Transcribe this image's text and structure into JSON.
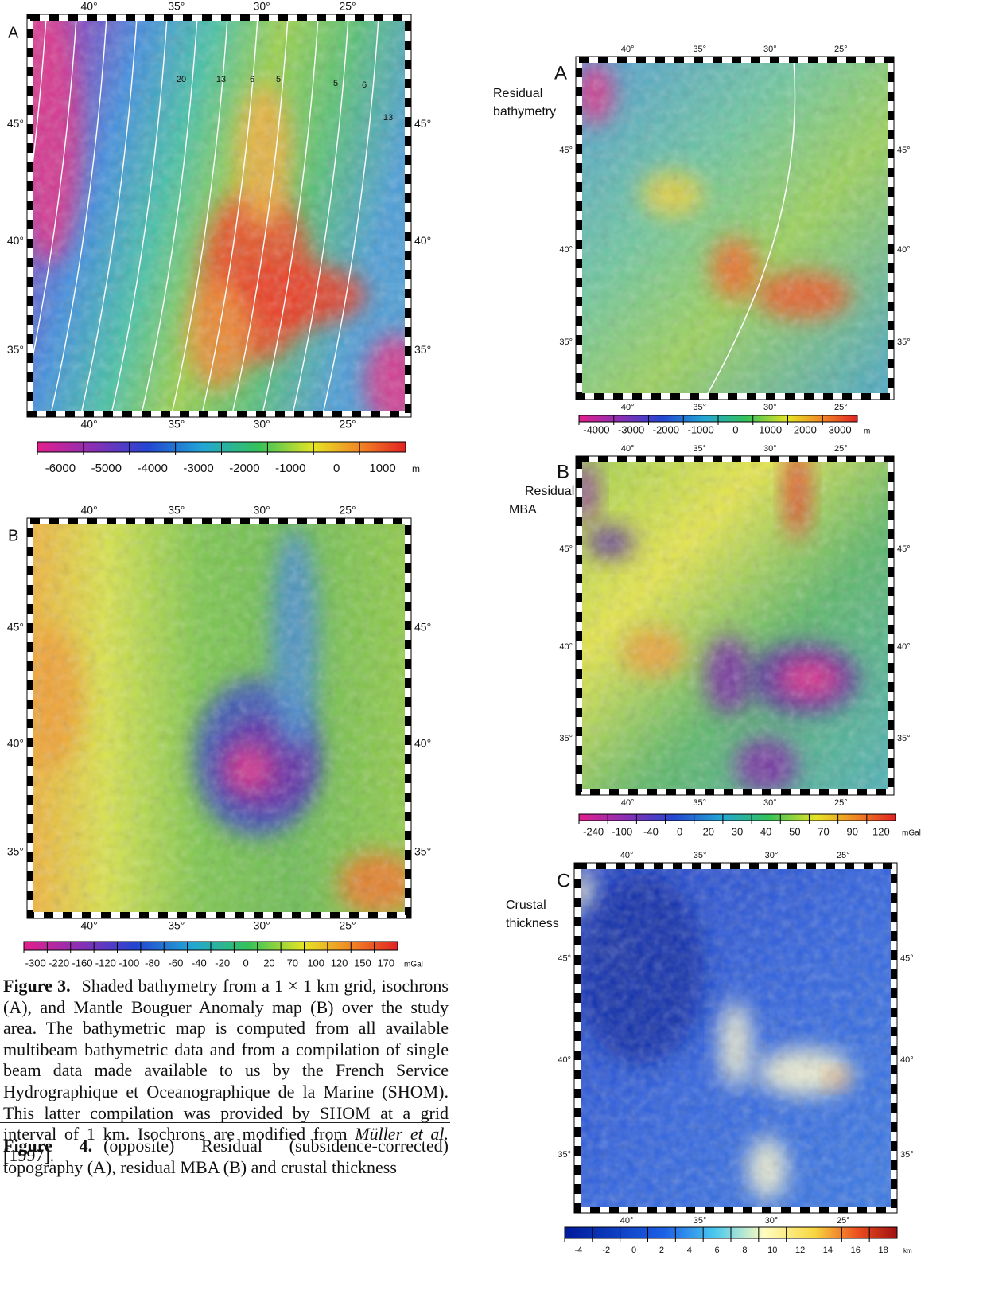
{
  "figure3": {
    "panel_a": {
      "label": "A",
      "top_lon": [
        "40°",
        "35°",
        "30°",
        "25°"
      ],
      "bottom_lon": [
        "40°",
        "35°",
        "30°",
        "25°"
      ],
      "left_lat": [
        "45°",
        "40°",
        "35°"
      ],
      "right_lat": [
        "45°",
        "40°",
        "35°"
      ],
      "isochron_labels": [
        "20",
        "13",
        "6",
        "5",
        "5",
        "6",
        "13"
      ],
      "colorbar": {
        "ticks": [
          "-6000",
          "-5000",
          "-4000",
          "-3000",
          "-2000",
          "-1000",
          "0",
          "1000"
        ],
        "unit": "m"
      }
    },
    "panel_b": {
      "label": "B",
      "top_lon": [
        "40°",
        "35°",
        "30°",
        "25°"
      ],
      "bottom_lon": [
        "40°",
        "35°",
        "30°",
        "25°"
      ],
      "left_lat": [
        "45°",
        "40°",
        "35°"
      ],
      "right_lat": [
        "45°",
        "40°",
        "35°"
      ],
      "colorbar": {
        "ticks": [
          "-300",
          "-220",
          "-160",
          "-120",
          "-100",
          "-80",
          "-60",
          "-40",
          "-20",
          "0",
          "20",
          "70",
          "100",
          "120",
          "150",
          "170"
        ],
        "unit": "mGal"
      }
    },
    "caption": {
      "label": "Figure 3.",
      "text": "Shaded bathymetry from a 1 × 1 km grid, isochrons (A), and Mantle Bouguer Anomaly map (B) over the study area. The bathymetric map is computed from all available multibeam bathymetric data and from a compilation of single beam data made available to us by the French Service Hydrographique et Oceanographique de la Marine (SHOM). This latter compilation was provided by SHOM at a grid interval of 1 km. Isochrons are modified from ",
      "citation": "Müller et al.",
      "end": " [1997]."
    }
  },
  "figure4": {
    "panel_a": {
      "label": "A",
      "title": [
        "Residual",
        "bathymetry"
      ],
      "top_lon": [
        "40°",
        "35°",
        "30°",
        "25°"
      ],
      "bottom_lon": [
        "40°",
        "35°",
        "30°",
        "25°"
      ],
      "left_lat": [
        "45°",
        "40°",
        "35°"
      ],
      "right_lat": [
        "45°",
        "40°",
        "35°"
      ],
      "colorbar": {
        "ticks": [
          "-4000",
          "-3000",
          "-2000",
          "-1000",
          "0",
          "1000",
          "2000",
          "3000"
        ],
        "unit": "m"
      }
    },
    "panel_b": {
      "label": "B",
      "title": [
        "Residual",
        "MBA"
      ],
      "top_lon": [
        "40°",
        "35°",
        "30°",
        "25°"
      ],
      "bottom_lon": [
        "40°",
        "35°",
        "30°",
        "25°"
      ],
      "left_lat": [
        "45°",
        "40°",
        "35°"
      ],
      "right_lat": [
        "45°",
        "40°",
        "35°"
      ],
      "colorbar": {
        "ticks": [
          "-240",
          "-100",
          "-40",
          "0",
          "20",
          "30",
          "40",
          "50",
          "70",
          "90",
          "120"
        ],
        "unit": "mGal"
      }
    },
    "panel_c": {
      "label": "C",
      "title": [
        "Crustal",
        "thickness"
      ],
      "top_lon": [
        "40°",
        "35°",
        "30°",
        "25°"
      ],
      "bottom_lon": [
        "40°",
        "35°",
        "30°",
        "25°"
      ],
      "left_lat": [
        "45°",
        "40°",
        "35°"
      ],
      "right_lat": [
        "45°",
        "40°",
        "35°"
      ],
      "colorbar": {
        "ticks": [
          "-4",
          "-2",
          "0",
          "2",
          "4",
          "6",
          "8",
          "10",
          "12",
          "14",
          "16",
          "18"
        ],
        "unit": "km"
      }
    },
    "caption": {
      "label": "Figure 4.",
      "text": "(opposite) Residual (subsidence-corrected) topography (A), residual MBA (B) and crustal thickness"
    }
  }
}
